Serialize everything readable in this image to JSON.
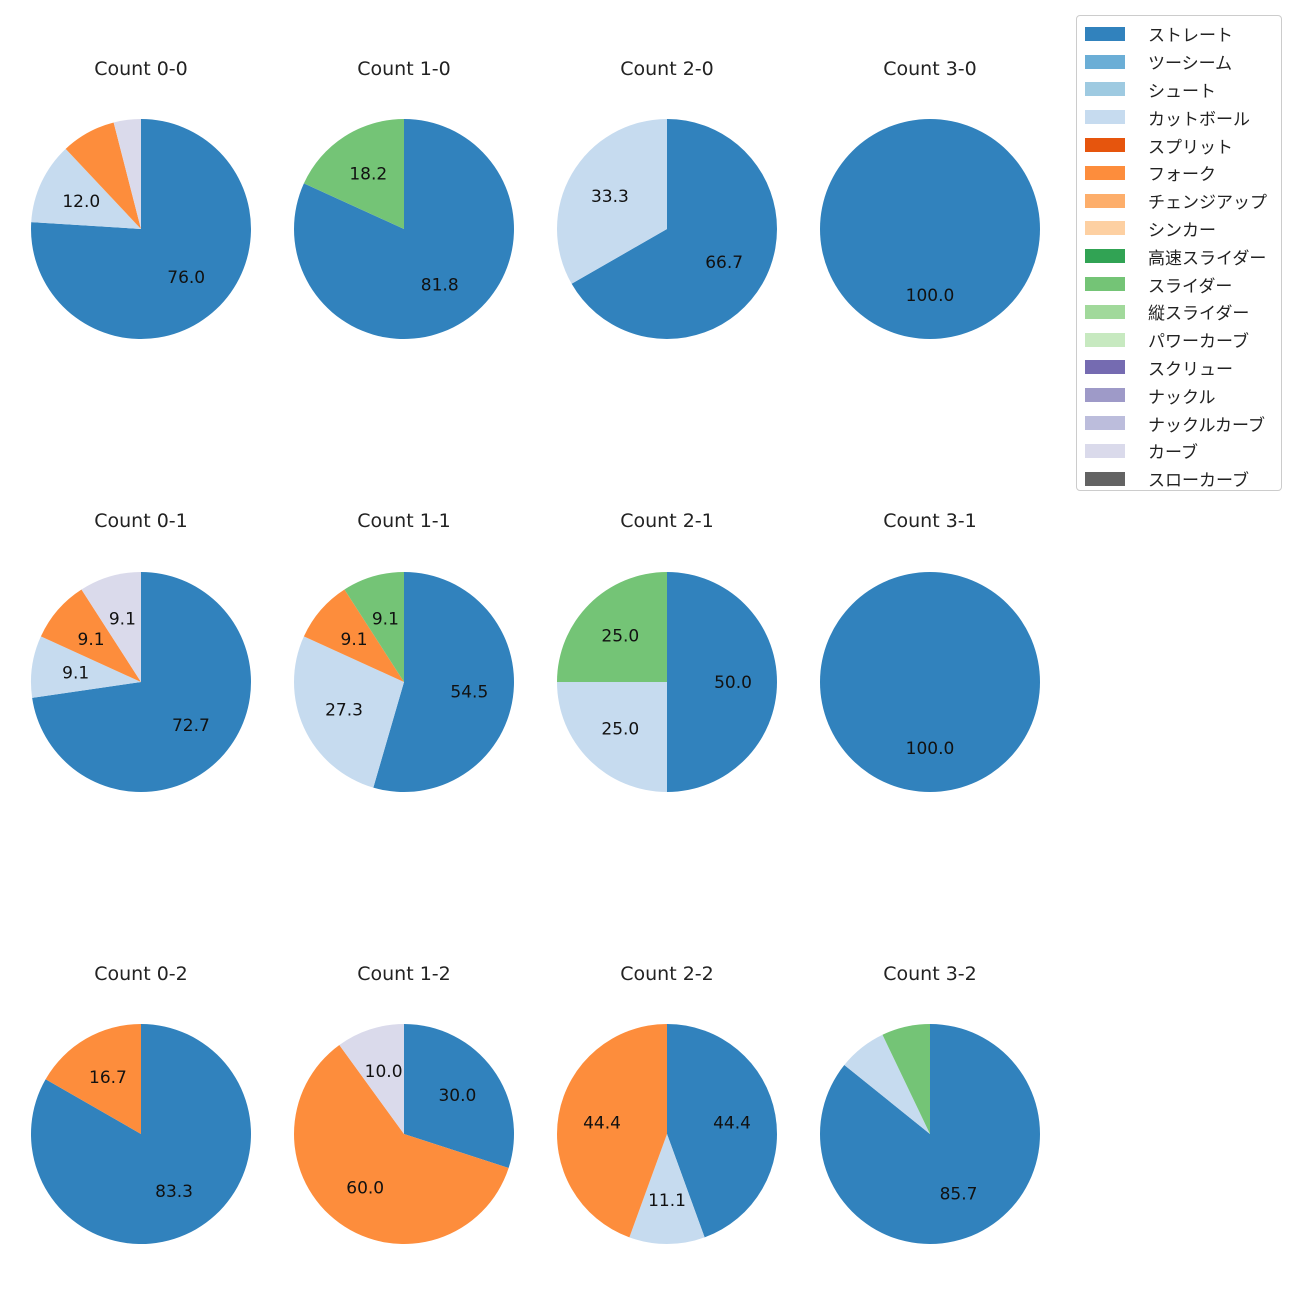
{
  "chart_data": {
    "type": "pie",
    "categories": [
      "ストレート",
      "ツーシーム",
      "シュート",
      "カットボール",
      "スプリット",
      "フォーク",
      "チェンジアップ",
      "シンカー",
      "高速スライダー",
      "スライダー",
      "縦スライダー",
      "パワーカーブ",
      "スクリュー",
      "ナックル",
      "ナックルカーブ",
      "カーブ",
      "スローカーブ"
    ],
    "colors": [
      "#3182bd",
      "#6baed6",
      "#9ecae1",
      "#c6dbef",
      "#e6550d",
      "#fd8d3c",
      "#fdae6b",
      "#fdd0a2",
      "#31a354",
      "#74c476",
      "#a1d99b",
      "#c7e9c0",
      "#756bb1",
      "#9e9ac8",
      "#bcbddc",
      "#dadaeb",
      "#636363"
    ],
    "legend_position": "top-right",
    "charts": [
      {
        "title": "Count 0-0",
        "slices": [
          {
            "pitch": "ストレート",
            "value": 76.0,
            "label": "76.0"
          },
          {
            "pitch": "カットボール",
            "value": 12.0,
            "label": "12.0"
          },
          {
            "pitch": "フォーク",
            "value": 8.0,
            "label": ""
          },
          {
            "pitch": "カーブ",
            "value": 4.0,
            "label": ""
          }
        ]
      },
      {
        "title": "Count 1-0",
        "slices": [
          {
            "pitch": "ストレート",
            "value": 81.8,
            "label": "81.8"
          },
          {
            "pitch": "スライダー",
            "value": 18.2,
            "label": "18.2"
          }
        ]
      },
      {
        "title": "Count 2-0",
        "slices": [
          {
            "pitch": "ストレート",
            "value": 66.7,
            "label": "66.7"
          },
          {
            "pitch": "カットボール",
            "value": 33.3,
            "label": "33.3"
          }
        ]
      },
      {
        "title": "Count 3-0",
        "slices": [
          {
            "pitch": "ストレート",
            "value": 100.0,
            "label": "100.0"
          }
        ]
      },
      {
        "title": "Count 0-1",
        "slices": [
          {
            "pitch": "ストレート",
            "value": 72.7,
            "label": "72.7"
          },
          {
            "pitch": "カットボール",
            "value": 9.1,
            "label": "9.1"
          },
          {
            "pitch": "フォーク",
            "value": 9.1,
            "label": "9.1"
          },
          {
            "pitch": "カーブ",
            "value": 9.1,
            "label": "9.1"
          }
        ]
      },
      {
        "title": "Count 1-1",
        "slices": [
          {
            "pitch": "ストレート",
            "value": 54.5,
            "label": "54.5"
          },
          {
            "pitch": "カットボール",
            "value": 27.3,
            "label": "27.3"
          },
          {
            "pitch": "フォーク",
            "value": 9.1,
            "label": "9.1"
          },
          {
            "pitch": "スライダー",
            "value": 9.1,
            "label": "9.1"
          }
        ]
      },
      {
        "title": "Count 2-1",
        "slices": [
          {
            "pitch": "ストレート",
            "value": 50.0,
            "label": "50.0"
          },
          {
            "pitch": "カットボール",
            "value": 25.0,
            "label": "25.0"
          },
          {
            "pitch": "スライダー",
            "value": 25.0,
            "label": "25.0"
          }
        ]
      },
      {
        "title": "Count 3-1",
        "slices": [
          {
            "pitch": "ストレート",
            "value": 100.0,
            "label": "100.0"
          }
        ]
      },
      {
        "title": "Count 0-2",
        "slices": [
          {
            "pitch": "ストレート",
            "value": 83.3,
            "label": "83.3"
          },
          {
            "pitch": "フォーク",
            "value": 16.7,
            "label": "16.7"
          }
        ]
      },
      {
        "title": "Count 1-2",
        "slices": [
          {
            "pitch": "ストレート",
            "value": 30.0,
            "label": "30.0"
          },
          {
            "pitch": "フォーク",
            "value": 60.0,
            "label": "60.0"
          },
          {
            "pitch": "カーブ",
            "value": 10.0,
            "label": "10.0"
          }
        ]
      },
      {
        "title": "Count 2-2",
        "slices": [
          {
            "pitch": "ストレート",
            "value": 44.4,
            "label": "44.4"
          },
          {
            "pitch": "カットボール",
            "value": 11.1,
            "label": "11.1"
          },
          {
            "pitch": "フォーク",
            "value": 44.4,
            "label": "44.4"
          }
        ]
      },
      {
        "title": "Count 3-2",
        "slices": [
          {
            "pitch": "ストレート",
            "value": 85.7,
            "label": "85.7"
          },
          {
            "pitch": "カットボール",
            "value": 7.1,
            "label": ""
          },
          {
            "pitch": "スライダー",
            "value": 7.1,
            "label": ""
          }
        ]
      }
    ]
  }
}
